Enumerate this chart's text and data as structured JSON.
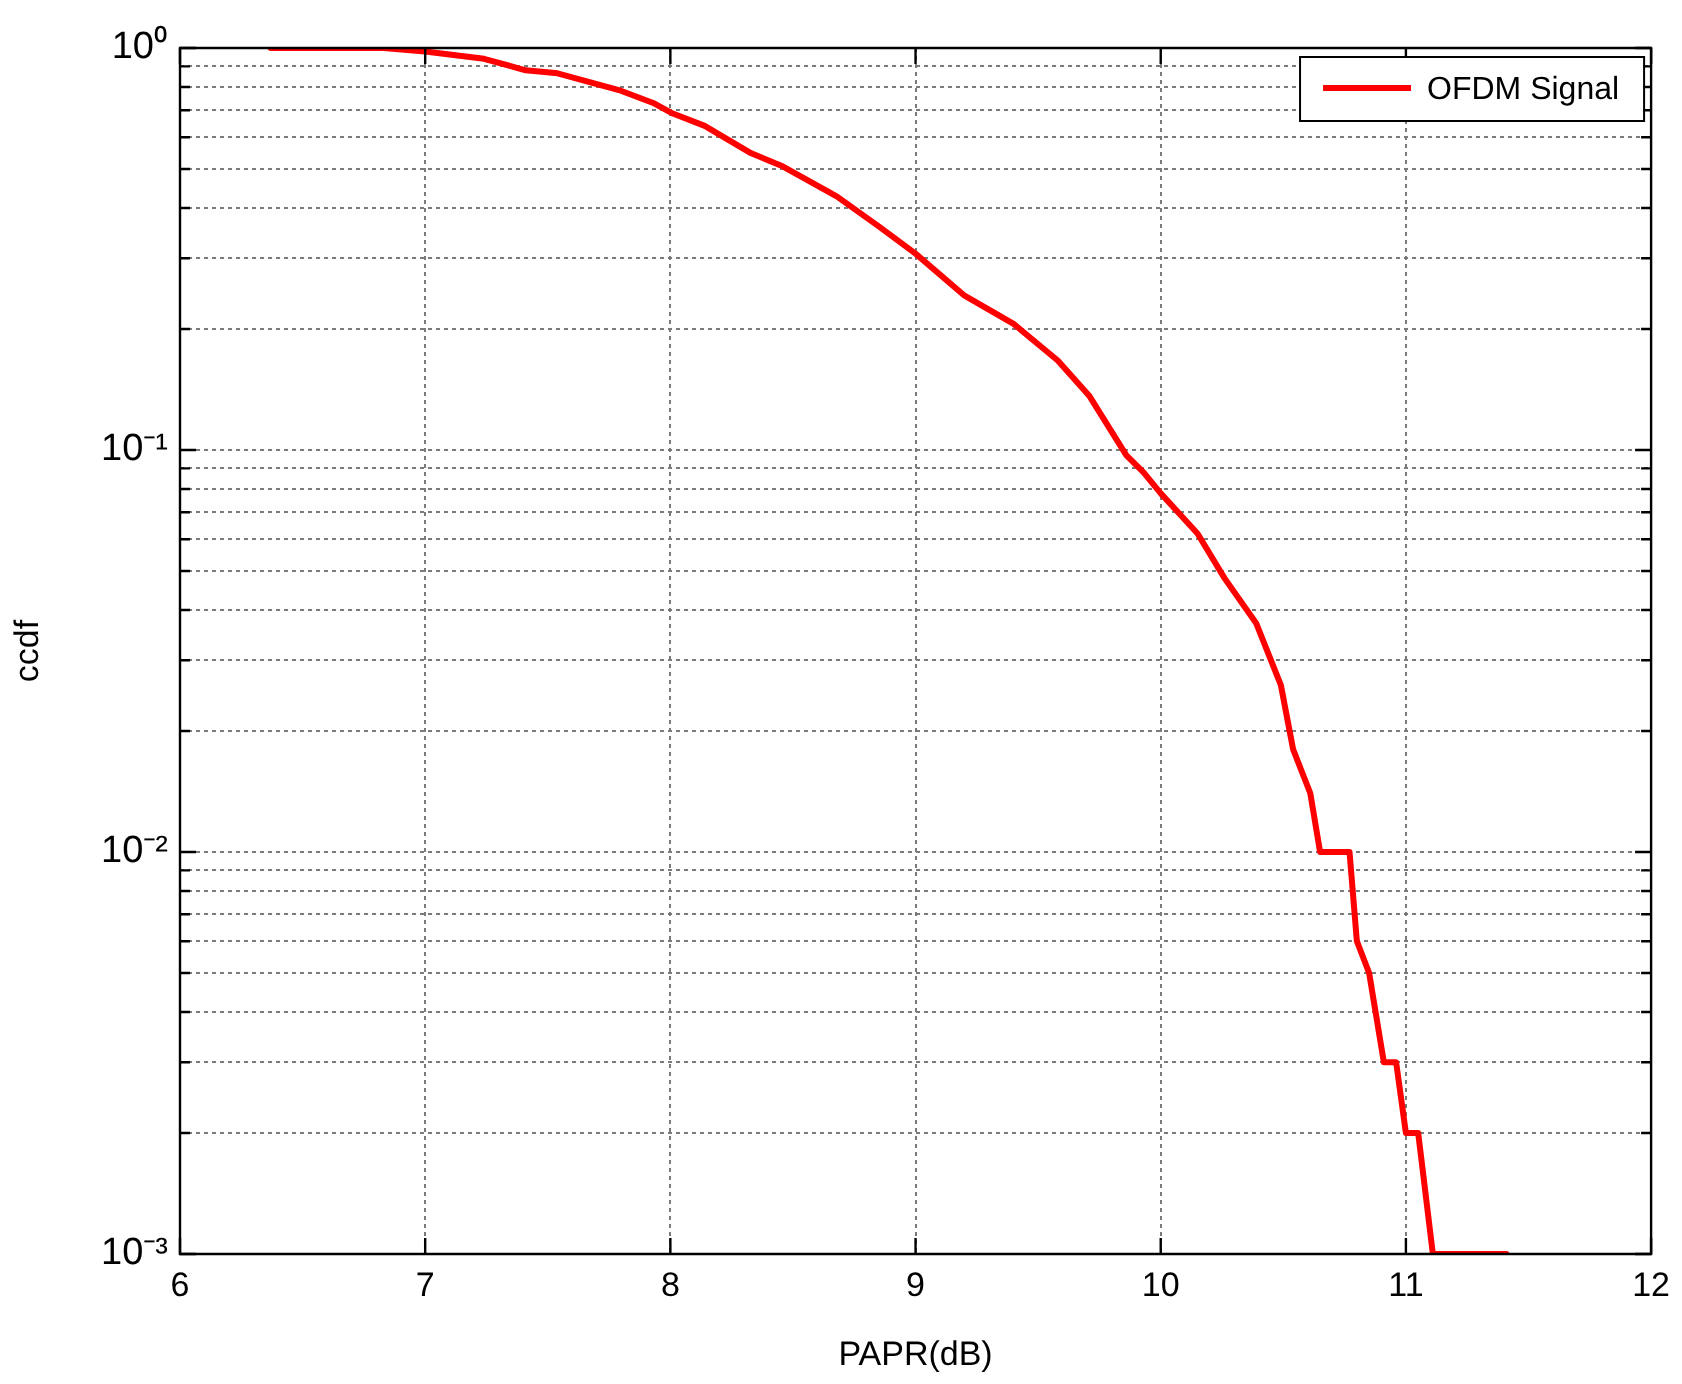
{
  "chart_data": {
    "type": "line",
    "xlabel": "PAPR(dB)",
    "ylabel": "ccdf",
    "log": "y",
    "grid": true,
    "legend": "top right",
    "marker": "none",
    "line_style": "solid",
    "xlim": [
      6,
      12
    ],
    "xticks": [
      6,
      7,
      8,
      9,
      10,
      11,
      12
    ],
    "ylim": [
      0.001,
      1
    ],
    "yticks": [
      {
        "value": 0.001,
        "label": "10⁻³"
      },
      {
        "value": 0.002,
        "label": null
      },
      {
        "value": 0.003,
        "label": null
      },
      {
        "value": 0.004,
        "label": null
      },
      {
        "value": 0.005,
        "label": null
      },
      {
        "value": 0.006,
        "label": null
      },
      {
        "value": 0.007,
        "label": null
      },
      {
        "value": 0.008,
        "label": null
      },
      {
        "value": 0.009,
        "label": null
      },
      {
        "value": 0.01,
        "label": "10⁻²"
      },
      {
        "value": 0.02,
        "label": null
      },
      {
        "value": 0.03,
        "label": null
      },
      {
        "value": 0.04,
        "label": null
      },
      {
        "value": 0.05,
        "label": null
      },
      {
        "value": 0.06,
        "label": null
      },
      {
        "value": 0.07,
        "label": null
      },
      {
        "value": 0.08,
        "label": null
      },
      {
        "value": 0.09,
        "label": null
      },
      {
        "value": 0.1,
        "label": "10⁻¹"
      },
      {
        "value": 0.2,
        "label": null
      },
      {
        "value": 0.3,
        "label": null
      },
      {
        "value": 0.4,
        "label": null
      },
      {
        "value": 0.5,
        "label": null
      },
      {
        "value": 0.6,
        "label": null
      },
      {
        "value": 0.7,
        "label": null
      },
      {
        "value": 0.8,
        "label": null
      },
      {
        "value": 0.9,
        "label": null
      },
      {
        "value": 1,
        "label": "10⁰"
      }
    ],
    "series": [
      {
        "name": "OFDM Signal",
        "color": "#ff0000",
        "x": [
          6.37,
          6.83,
          7.0,
          7.24,
          7.41,
          7.54,
          7.79,
          7.93,
          8.01,
          8.14,
          8.33,
          8.46,
          8.68,
          8.85,
          9.0,
          9.2,
          9.4,
          9.58,
          9.71,
          9.86,
          9.93,
          10.0,
          10.15,
          10.26,
          10.39,
          10.49,
          10.54,
          10.61,
          10.65,
          10.77,
          10.8,
          10.85,
          10.91,
          10.96,
          11.0,
          11.05,
          11.11,
          11.41
        ],
        "values": [
          1,
          1,
          0.98,
          0.94,
          0.88,
          0.865,
          0.786,
          0.73,
          0.687,
          0.64,
          0.547,
          0.507,
          0.427,
          0.36,
          0.308,
          0.242,
          0.206,
          0.167,
          0.136,
          0.097,
          0.088,
          0.078,
          0.062,
          0.048,
          0.037,
          0.026,
          0.018,
          0.014,
          0.01,
          0.01,
          0.006,
          0.005,
          0.003,
          0.003,
          0.002,
          0.002,
          0.001,
          0.001
        ]
      }
    ]
  }
}
